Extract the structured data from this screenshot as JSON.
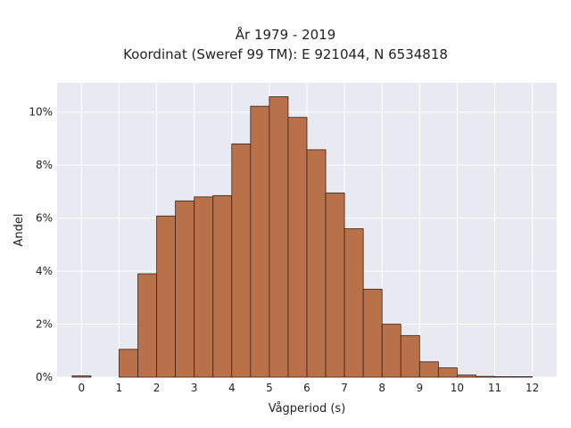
{
  "chart_data": {
    "type": "bar",
    "title": "År 1979 - 2019",
    "subtitle": "Koordinat (Sweref 99 TM): E 921044, N 6534818",
    "xlabel": "Vågperiod (s)",
    "ylabel": "Andel",
    "xlim": [
      -0.65,
      12.65
    ],
    "ylim": [
      0,
      11.1
    ],
    "x_ticks": [
      0,
      1,
      2,
      3,
      4,
      5,
      6,
      7,
      8,
      9,
      10,
      11,
      12
    ],
    "y_ticks": [
      0,
      2,
      4,
      6,
      8,
      10
    ],
    "y_tick_labels": [
      "0%",
      "2%",
      "4%",
      "6%",
      "8%",
      "10%"
    ],
    "bin_width": 0.5,
    "bars": [
      {
        "x0": -0.25,
        "value": 0.05
      },
      {
        "x0": 1.0,
        "value": 1.05
      },
      {
        "x0": 1.5,
        "value": 3.9
      },
      {
        "x0": 2.0,
        "value": 6.08
      },
      {
        "x0": 2.5,
        "value": 6.65
      },
      {
        "x0": 3.0,
        "value": 6.8
      },
      {
        "x0": 3.5,
        "value": 6.85
      },
      {
        "x0": 4.0,
        "value": 8.8
      },
      {
        "x0": 4.5,
        "value": 10.22
      },
      {
        "x0": 5.0,
        "value": 10.58
      },
      {
        "x0": 5.5,
        "value": 9.8
      },
      {
        "x0": 6.0,
        "value": 8.58
      },
      {
        "x0": 6.5,
        "value": 6.95
      },
      {
        "x0": 7.0,
        "value": 5.6
      },
      {
        "x0": 7.5,
        "value": 3.32
      },
      {
        "x0": 8.0,
        "value": 2.0
      },
      {
        "x0": 8.5,
        "value": 1.57
      },
      {
        "x0": 9.0,
        "value": 0.58
      },
      {
        "x0": 9.5,
        "value": 0.35
      },
      {
        "x0": 10.0,
        "value": 0.08
      },
      {
        "x0": 10.5,
        "value": 0.03
      },
      {
        "x0": 11.0,
        "value": 0.02
      },
      {
        "x0": 11.5,
        "value": 0.02
      }
    ],
    "grid": true,
    "colors": {
      "bar_fill": "#b9714a",
      "bar_edge": "#3a2418",
      "plot_background": "#e9e9f1",
      "grid": "#ffffff"
    }
  }
}
